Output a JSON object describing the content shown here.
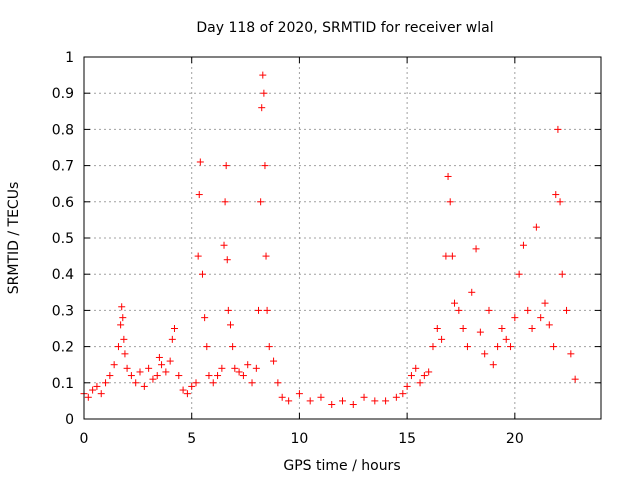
{
  "chart_data": {
    "type": "scatter",
    "title": "Day 118 of 2020, SRMTID for receiver wlal",
    "xlabel": "GPS time / hours",
    "ylabel": "SRMTID / TECUs",
    "xlim": [
      0,
      24
    ],
    "ylim": [
      0,
      1
    ],
    "xticks": [
      0,
      5,
      10,
      15,
      20
    ],
    "xtick_labels": [
      "0",
      "5",
      "10",
      "15",
      "20"
    ],
    "yticks": [
      0,
      0.1,
      0.2,
      0.3,
      0.4,
      0.5,
      0.6,
      0.7,
      0.8,
      0.9,
      1
    ],
    "ytick_labels": [
      "0",
      "0.1",
      "0.2",
      "0.3",
      "0.4",
      "0.5",
      "0.6",
      "0.7",
      "0.8",
      "0.9",
      "1"
    ],
    "grid": true,
    "marker": "+",
    "series_color": "#ff0000",
    "series": [
      {
        "name": "SRMTID",
        "x": [
          0.0,
          0.2,
          0.4,
          0.6,
          0.8,
          1.0,
          1.2,
          1.4,
          1.6,
          1.7,
          1.75,
          1.8,
          1.85,
          1.9,
          2.0,
          2.2,
          2.4,
          2.6,
          2.8,
          3.0,
          3.2,
          3.4,
          3.5,
          3.6,
          3.8,
          4.0,
          4.1,
          4.2,
          4.4,
          4.6,
          4.8,
          5.0,
          5.2,
          5.3,
          5.35,
          5.4,
          5.5,
          5.6,
          5.7,
          5.8,
          6.0,
          6.2,
          6.4,
          6.5,
          6.55,
          6.6,
          6.65,
          6.7,
          6.8,
          6.9,
          7.0,
          7.2,
          7.4,
          7.6,
          7.8,
          8.0,
          8.1,
          8.2,
          8.25,
          8.3,
          8.35,
          8.4,
          8.45,
          8.5,
          8.6,
          8.8,
          9.0,
          9.2,
          9.5,
          10.0,
          10.5,
          11.0,
          11.5,
          12.0,
          12.5,
          13.0,
          13.5,
          14.0,
          14.5,
          14.8,
          15.0,
          15.2,
          15.4,
          15.6,
          15.8,
          16.0,
          16.2,
          16.4,
          16.6,
          16.8,
          16.9,
          17.0,
          17.1,
          17.2,
          17.4,
          17.6,
          17.8,
          18.0,
          18.2,
          18.4,
          18.6,
          18.8,
          19.0,
          19.2,
          19.4,
          19.6,
          19.8,
          20.0,
          20.2,
          20.4,
          20.6,
          20.8,
          21.0,
          21.2,
          21.4,
          21.6,
          21.8,
          21.9,
          22.0,
          22.1,
          22.2,
          22.4,
          22.6,
          22.8
        ],
        "y": [
          0.07,
          0.06,
          0.08,
          0.09,
          0.07,
          0.1,
          0.12,
          0.15,
          0.2,
          0.26,
          0.31,
          0.28,
          0.22,
          0.18,
          0.14,
          0.12,
          0.1,
          0.13,
          0.09,
          0.14,
          0.11,
          0.12,
          0.17,
          0.15,
          0.13,
          0.16,
          0.22,
          0.25,
          0.12,
          0.08,
          0.07,
          0.09,
          0.1,
          0.45,
          0.62,
          0.71,
          0.4,
          0.28,
          0.2,
          0.12,
          0.1,
          0.12,
          0.14,
          0.48,
          0.6,
          0.7,
          0.44,
          0.3,
          0.26,
          0.2,
          0.14,
          0.13,
          0.12,
          0.15,
          0.1,
          0.14,
          0.3,
          0.6,
          0.86,
          0.95,
          0.9,
          0.7,
          0.45,
          0.3,
          0.2,
          0.16,
          0.1,
          0.06,
          0.05,
          0.07,
          0.05,
          0.06,
          0.04,
          0.05,
          0.04,
          0.06,
          0.05,
          0.05,
          0.06,
          0.07,
          0.09,
          0.12,
          0.14,
          0.1,
          0.12,
          0.13,
          0.2,
          0.25,
          0.22,
          0.45,
          0.67,
          0.6,
          0.45,
          0.32,
          0.3,
          0.25,
          0.2,
          0.35,
          0.47,
          0.24,
          0.18,
          0.3,
          0.15,
          0.2,
          0.25,
          0.22,
          0.2,
          0.28,
          0.4,
          0.48,
          0.3,
          0.25,
          0.53,
          0.28,
          0.32,
          0.26,
          0.2,
          0.62,
          0.8,
          0.6,
          0.4,
          0.3,
          0.18,
          0.11
        ]
      }
    ]
  }
}
